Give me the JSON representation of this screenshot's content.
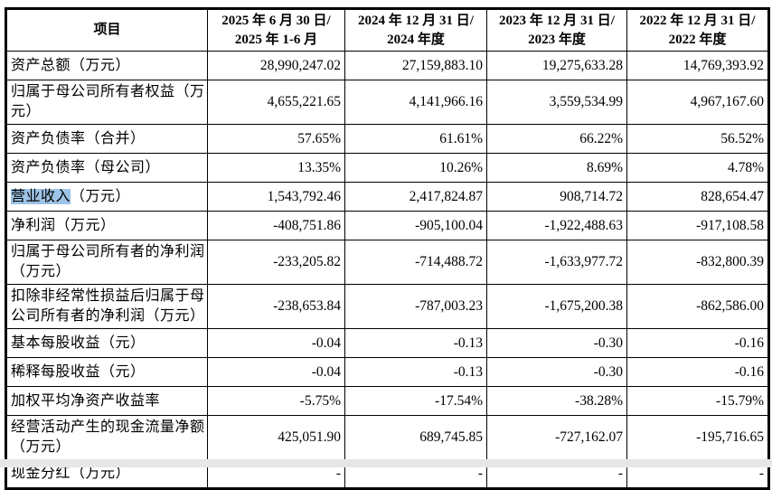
{
  "table": {
    "header": {
      "item": "项目",
      "periods": [
        {
          "line1": "2025 年 6 月 30 日/",
          "line2": "2025 年 1-6 月"
        },
        {
          "line1": "2024 年 12 月 31 日/",
          "line2": "2024 年度"
        },
        {
          "line1": "2023 年 12 月 31 日/",
          "line2": "2023 年度"
        },
        {
          "line1": "2022 年 12 月 31 日/",
          "line2": "2022 年度"
        }
      ]
    },
    "rows": [
      {
        "label": "资产总额（万元）",
        "values": [
          "28,990,247.02",
          "27,159,883.10",
          "19,275,633.28",
          "14,769,393.92"
        ]
      },
      {
        "label": "归属于母公司所有者权益（万元）",
        "values": [
          "4,655,221.65",
          "4,141,966.16",
          "3,559,534.99",
          "4,967,167.60"
        ]
      },
      {
        "label": "资产负债率（合并）",
        "values": [
          "57.65%",
          "61.61%",
          "66.22%",
          "56.52%"
        ]
      },
      {
        "label": "资产负债率（母公司）",
        "values": [
          "13.35%",
          "10.26%",
          "8.69%",
          "4.78%"
        ]
      },
      {
        "label_highlight": "营业收入",
        "label": "（万元）",
        "values": [
          "1,543,792.46",
          "2,417,824.87",
          "908,714.72",
          "828,654.47"
        ]
      },
      {
        "label": "净利润（万元）",
        "values": [
          "-408,751.86",
          "-905,100.04",
          "-1,922,488.63",
          "-917,108.58"
        ]
      },
      {
        "label": "归属于母公司所有者的净利润（万元）",
        "values": [
          "-233,205.82",
          "-714,488.72",
          "-1,633,977.72",
          "-832,800.39"
        ]
      },
      {
        "label": "扣除非经常性损益后归属于母公司所有者的净利润（万元）",
        "values": [
          "-238,653.84",
          "-787,003.23",
          "-1,675,200.38",
          "-862,586.00"
        ]
      },
      {
        "label": "基本每股收益（元）",
        "values": [
          "-0.04",
          "-0.13",
          "-0.30",
          "-0.16"
        ]
      },
      {
        "label": "稀释每股收益（元）",
        "values": [
          "-0.04",
          "-0.13",
          "-0.30",
          "-0.16"
        ]
      },
      {
        "label": "加权平均净资产收益率",
        "values": [
          "-5.75%",
          "-17.54%",
          "-38.28%",
          "-15.79%"
        ]
      },
      {
        "label": "经营活动产生的现金流量净额（万元）",
        "values": [
          "425,051.90",
          "689,745.85",
          "-727,162.07",
          "-195,716.65"
        ]
      },
      {
        "label": "现金分红（万元）",
        "values": [
          "-",
          "-",
          "-",
          "-"
        ]
      }
    ],
    "highlight_color": "#9dc3e6"
  }
}
